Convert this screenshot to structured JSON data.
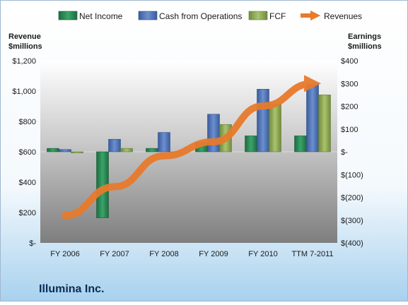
{
  "chart_data": {
    "type": "bar",
    "title": "Illumina Inc.",
    "categories": [
      "FY 2006",
      "FY 2007",
      "FY 2008",
      "FY 2009",
      "FY 2010",
      "TTM 7-2011"
    ],
    "left_axis": {
      "label_line1": "Revenue",
      "label_line2": "$millions",
      "range": [
        0,
        1200
      ],
      "ticks": [
        0,
        200,
        400,
        600,
        800,
        1000,
        1200
      ],
      "tick_labels": [
        "$-",
        "$200",
        "$400",
        "$600",
        "$800",
        "$1,000",
        "$1,200"
      ]
    },
    "right_axis": {
      "label_line1": "Earnings",
      "label_line2": "$millions",
      "range": [
        -400,
        400
      ],
      "ticks": [
        -400,
        -300,
        -200,
        -100,
        0,
        100,
        200,
        300,
        400
      ],
      "tick_labels": [
        "$(400)",
        "$(300)",
        "$(200)",
        "$(100)",
        "$-",
        "$100",
        "$200",
        "$300",
        "$400"
      ]
    },
    "series": [
      {
        "name": "Net Income",
        "kind": "bar",
        "axis": "right",
        "color": "#2e8b57",
        "values": [
          15,
          -290,
          15,
          40,
          70,
          70
        ]
      },
      {
        "name": "Cash from Operations",
        "kind": "bar",
        "axis": "right",
        "color": "#4f73b6",
        "values": [
          10,
          55,
          85,
          165,
          275,
          295
        ]
      },
      {
        "name": "FCF",
        "kind": "bar",
        "axis": "right",
        "color": "#8faa5a",
        "values": [
          -5,
          15,
          0,
          120,
          210,
          250
        ]
      },
      {
        "name": "Revenues",
        "kind": "line",
        "axis": "left",
        "color": "#e87a2c",
        "values": [
          180,
          370,
          573,
          666,
          902,
          1050
        ]
      }
    ],
    "legend_position": "top",
    "grid": false
  }
}
